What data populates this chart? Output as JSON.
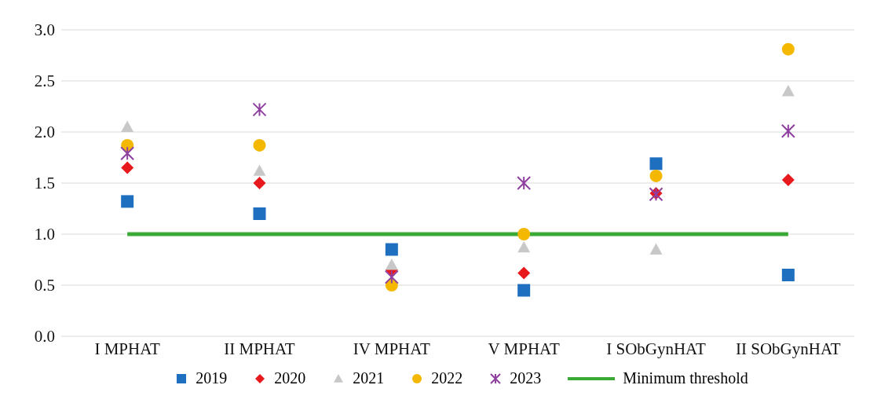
{
  "chart_data": {
    "type": "scatter",
    "categories": [
      "I MPHAT",
      "II MPHAT",
      "IV MPHAT",
      "V MPHAT",
      "I SObGynHAT",
      "II SObGynHAT"
    ],
    "series": [
      {
        "name": "2019",
        "color": "#1f6fc0",
        "marker": "square",
        "values": [
          1.32,
          1.2,
          0.85,
          0.45,
          1.69,
          0.6
        ]
      },
      {
        "name": "2020",
        "color": "#e8191c",
        "marker": "diamond",
        "values": [
          1.65,
          1.5,
          0.65,
          0.62,
          1.4,
          1.53
        ]
      },
      {
        "name": "2021",
        "color": "#c8c8c8",
        "marker": "triangle",
        "values": [
          2.05,
          1.62,
          0.7,
          0.87,
          0.85,
          2.4
        ]
      },
      {
        "name": "2022",
        "color": "#f5b800",
        "marker": "circle",
        "values": [
          1.87,
          1.87,
          0.5,
          1.0,
          1.57,
          2.81
        ]
      },
      {
        "name": "2023",
        "color": "#8e3fa0",
        "marker": "cross",
        "values": [
          1.79,
          2.22,
          0.58,
          1.5,
          1.39,
          2.01
        ]
      },
      {
        "name": "Minimum threshold",
        "type": "line",
        "color": "#3aa935",
        "marker": "none",
        "values": [
          1,
          1,
          1,
          1,
          1,
          1
        ]
      }
    ],
    "ylim": [
      0,
      3
    ],
    "yticks": [
      {
        "value": 0,
        "label": "0.0"
      },
      {
        "value": 0.5,
        "label": "0.5"
      },
      {
        "value": 1,
        "label": "1.0"
      },
      {
        "value": 1.5,
        "label": "1.5"
      },
      {
        "value": 2,
        "label": "2.0"
      },
      {
        "value": 2.5,
        "label": "2.5"
      },
      {
        "value": 3,
        "label": "3.0"
      }
    ],
    "grid": "y",
    "legend": "bottom"
  }
}
